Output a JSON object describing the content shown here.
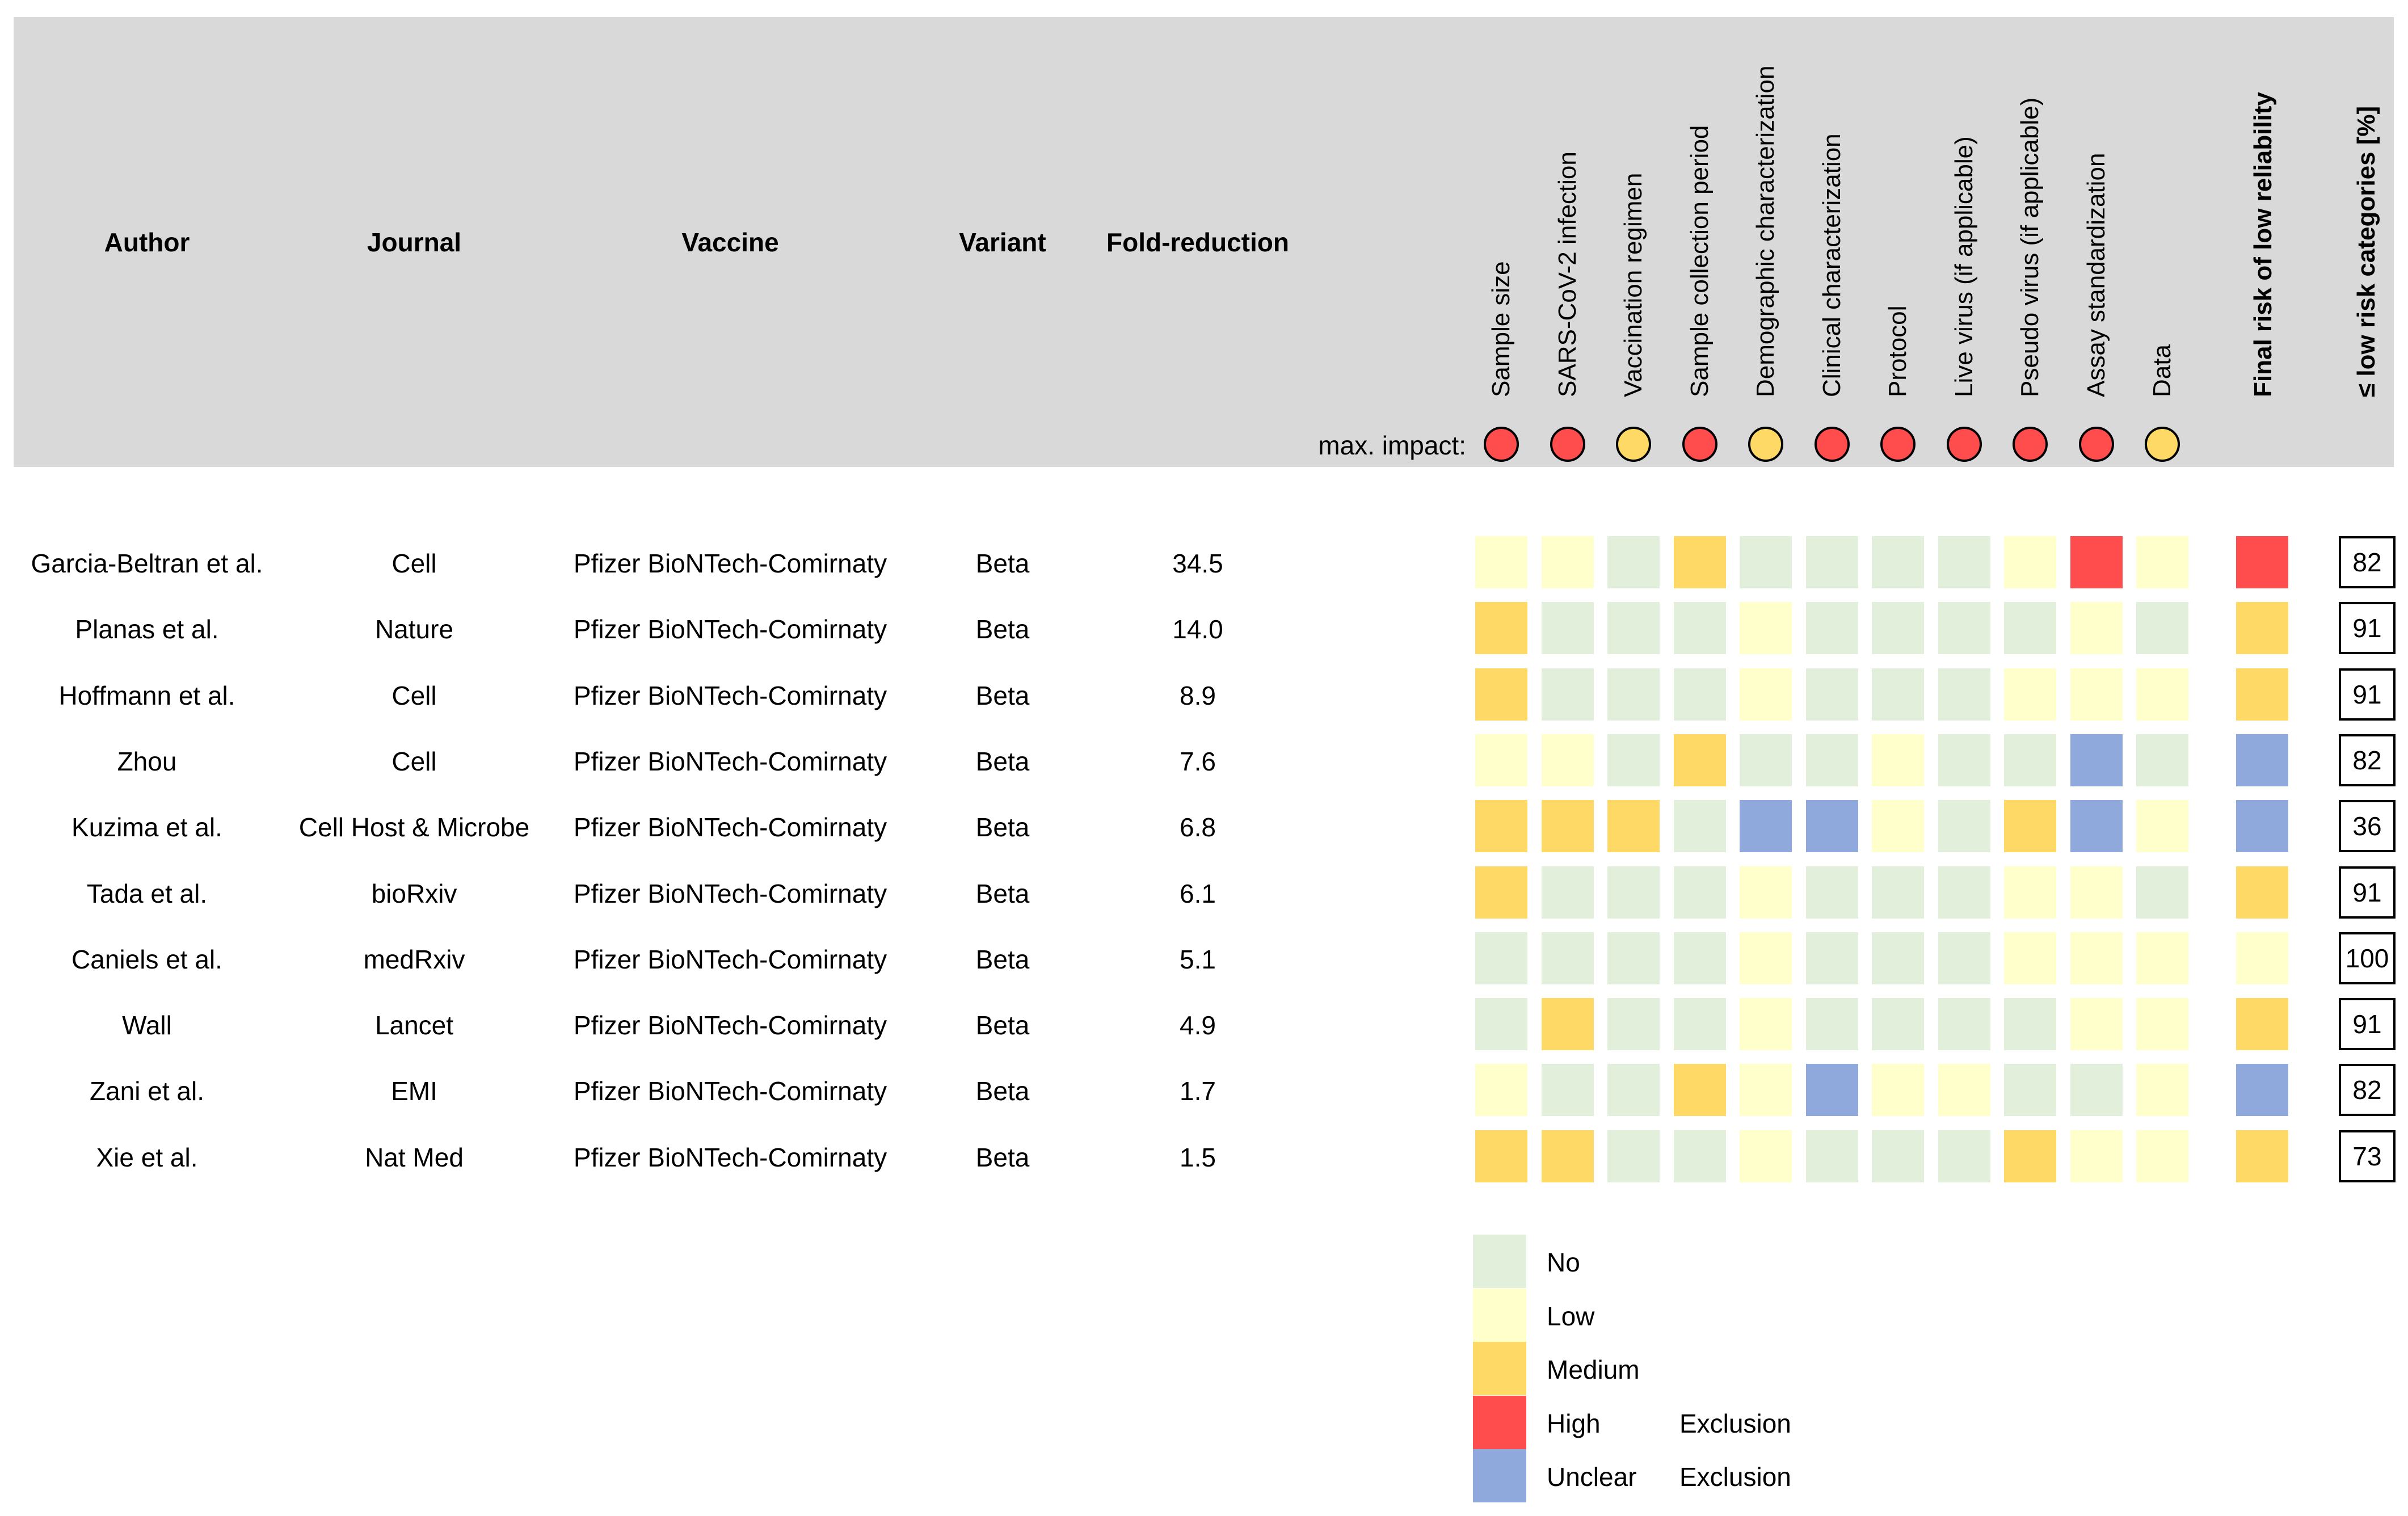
{
  "colors": {
    "No": "#e2efdb",
    "Low": "#ffffcc",
    "Medium": "#ffd966",
    "High": "#ff4c4c",
    "Unclear": "#8fa9dc",
    "header_bg": "#d9d9d9"
  },
  "headers": {
    "author": "Author",
    "journal": "Journal",
    "vaccine": "Vaccine",
    "variant": "Variant",
    "fold": "Fold-reduction"
  },
  "max_impact_label": "max. impact:",
  "final_header": "Final risk of low reliability",
  "percent_header": "≤ low risk categories [%]",
  "chart_data": {
    "type": "table",
    "categories": [
      "Sample size",
      "SARS-CoV-2 infection",
      "Vaccination regimen",
      "Sample collection period",
      "Demographic characterization",
      "Clinical characterization",
      "Protocol",
      "Live virus (if applicable)",
      "Pseudo virus (if applicable)",
      "Assay standardization",
      "Data"
    ],
    "max_impact": [
      "High",
      "High",
      "Medium",
      "High",
      "Medium",
      "High",
      "High",
      "High",
      "High",
      "High",
      "Medium"
    ],
    "rows": [
      {
        "author": "Garcia-Beltran et al.",
        "journal": "Cell",
        "vaccine": "Pfizer BioNTech-Comirnaty",
        "variant": "Beta",
        "fold": "34.5",
        "ratings": [
          "Low",
          "Low",
          "No",
          "Medium",
          "No",
          "No",
          "No",
          "No",
          "Low",
          "High",
          "Low"
        ],
        "final": "High",
        "percent": "82"
      },
      {
        "author": "Planas et al.",
        "journal": "Nature",
        "vaccine": "Pfizer BioNTech-Comirnaty",
        "variant": "Beta",
        "fold": "14.0",
        "ratings": [
          "Medium",
          "No",
          "No",
          "No",
          "Low",
          "No",
          "No",
          "No",
          "No",
          "Low",
          "No"
        ],
        "final": "Medium",
        "percent": "91"
      },
      {
        "author": "Hoffmann et al.",
        "journal": "Cell",
        "vaccine": "Pfizer BioNTech-Comirnaty",
        "variant": "Beta",
        "fold": "8.9",
        "ratings": [
          "Medium",
          "No",
          "No",
          "No",
          "Low",
          "No",
          "No",
          "No",
          "Low",
          "Low",
          "Low"
        ],
        "final": "Medium",
        "percent": "91"
      },
      {
        "author": "Zhou",
        "journal": "Cell",
        "vaccine": "Pfizer BioNTech-Comirnaty",
        "variant": "Beta",
        "fold": "7.6",
        "ratings": [
          "Low",
          "Low",
          "No",
          "Medium",
          "No",
          "No",
          "Low",
          "No",
          "No",
          "Unclear",
          "No"
        ],
        "final": "Unclear",
        "percent": "82"
      },
      {
        "author": "Kuzima et al.",
        "journal": "Cell Host & Microbe",
        "vaccine": "Pfizer BioNTech-Comirnaty",
        "variant": "Beta",
        "fold": "6.8",
        "ratings": [
          "Medium",
          "Medium",
          "Medium",
          "No",
          "Unclear",
          "Unclear",
          "Low",
          "No",
          "Medium",
          "Unclear",
          "Low"
        ],
        "final": "Unclear",
        "percent": "36"
      },
      {
        "author": "Tada et al.",
        "journal": "bioRxiv",
        "vaccine": "Pfizer BioNTech-Comirnaty",
        "variant": "Beta",
        "fold": "6.1",
        "ratings": [
          "Medium",
          "No",
          "No",
          "No",
          "Low",
          "No",
          "No",
          "No",
          "Low",
          "Low",
          "No"
        ],
        "final": "Medium",
        "percent": "91"
      },
      {
        "author": "Caniels et al.",
        "journal": "medRxiv",
        "vaccine": "Pfizer BioNTech-Comirnaty",
        "variant": "Beta",
        "fold": "5.1",
        "ratings": [
          "No",
          "No",
          "No",
          "No",
          "Low",
          "No",
          "No",
          "No",
          "Low",
          "Low",
          "Low"
        ],
        "final": "Low",
        "percent": "100"
      },
      {
        "author": "Wall",
        "journal": "Lancet",
        "vaccine": "Pfizer BioNTech-Comirnaty",
        "variant": "Beta",
        "fold": "4.9",
        "ratings": [
          "No",
          "Medium",
          "No",
          "No",
          "Low",
          "No",
          "No",
          "No",
          "No",
          "Low",
          "Low"
        ],
        "final": "Medium",
        "percent": "91"
      },
      {
        "author": "Zani et al.",
        "journal": "EMI",
        "vaccine": "Pfizer BioNTech-Comirnaty",
        "variant": "Beta",
        "fold": "1.7",
        "ratings": [
          "Low",
          "No",
          "No",
          "Medium",
          "Low",
          "Unclear",
          "Low",
          "Low",
          "No",
          "No",
          "Low"
        ],
        "final": "Unclear",
        "percent": "82"
      },
      {
        "author": "Xie et al.",
        "journal": "Nat Med",
        "vaccine": "Pfizer BioNTech-Comirnaty",
        "variant": "Beta",
        "fold": "1.5",
        "ratings": [
          "Medium",
          "Medium",
          "No",
          "No",
          "Low",
          "No",
          "No",
          "No",
          "Medium",
          "Low",
          "Low"
        ],
        "final": "Medium",
        "percent": "73"
      }
    ],
    "legend": [
      {
        "label": "No",
        "note": ""
      },
      {
        "label": "Low",
        "note": ""
      },
      {
        "label": "Medium",
        "note": ""
      },
      {
        "label": "High",
        "note": "Exclusion"
      },
      {
        "label": "Unclear",
        "note": "Exclusion"
      }
    ]
  }
}
